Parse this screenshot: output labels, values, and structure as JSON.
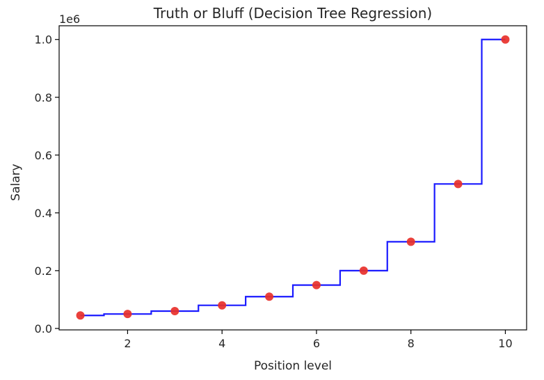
{
  "chart_data": {
    "type": "scatter",
    "title": "Truth or Bluff (Decision Tree Regression)",
    "xlabel": "Position level",
    "ylabel": "Salary",
    "y_offset_label": "1e6",
    "xlim": [
      0.55,
      10.45
    ],
    "ylim": [
      -0.005,
      1.0475
    ],
    "x_ticks": [
      2,
      4,
      6,
      8,
      10
    ],
    "x_tick_labels": [
      "2",
      "4",
      "6",
      "8",
      "10"
    ],
    "y_ticks": [
      0.0,
      0.2,
      0.4,
      0.6,
      0.8,
      1.0
    ],
    "y_tick_labels": [
      "0.0",
      "0.2",
      "0.4",
      "0.6",
      "0.8",
      "1.0"
    ],
    "grid": false,
    "scatter": {
      "color": "#e8302a",
      "x": [
        1,
        2,
        3,
        4,
        5,
        6,
        7,
        8,
        9,
        10
      ],
      "y": [
        0.045,
        0.05,
        0.06,
        0.08,
        0.11,
        0.15,
        0.2,
        0.3,
        0.5,
        1.0
      ]
    },
    "prediction": {
      "color": "#1a1aff",
      "x_start": 1,
      "x_end": 10,
      "breaks": [
        1.5,
        2.5,
        3.5,
        4.5,
        5.5,
        6.5,
        7.5,
        8.5,
        9.5
      ],
      "levels": [
        0.045,
        0.05,
        0.06,
        0.08,
        0.11,
        0.15,
        0.2,
        0.3,
        0.5,
        1.0
      ]
    }
  }
}
